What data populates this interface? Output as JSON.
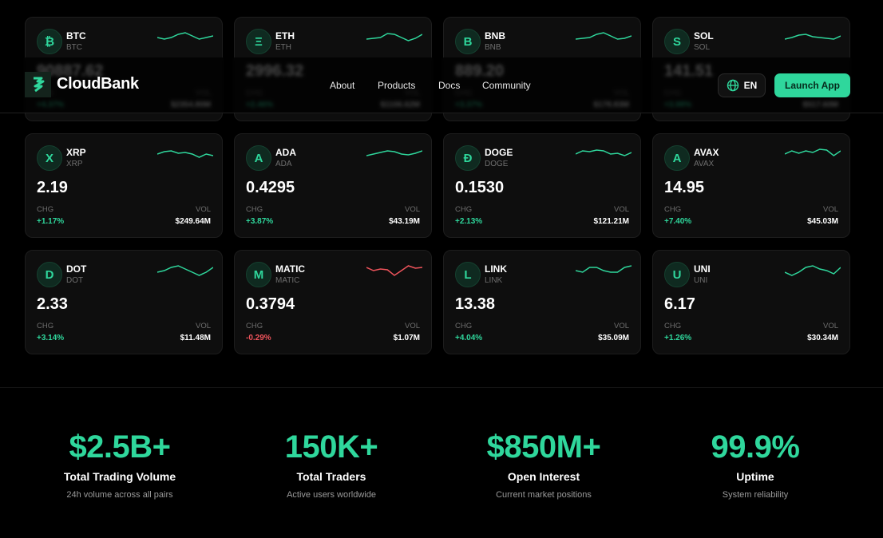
{
  "brand": {
    "name": "CloudBank",
    "accent": "#2fd79c",
    "negative": "#f0545c"
  },
  "nav": [
    "About",
    "Products",
    "Docs",
    "Community"
  ],
  "lang": {
    "label": "EN",
    "icon": "globe-icon"
  },
  "cta": "Launch App",
  "labels": {
    "chg": "CHG",
    "vol": "VOL"
  },
  "coins": [
    {
      "icon": "₿",
      "symbol": "BTC",
      "name": "BTC",
      "price": "90887.62",
      "change": "+4.37%",
      "volume": "$2354.80M",
      "trend": "up"
    },
    {
      "icon": "Ξ",
      "symbol": "ETH",
      "name": "ETH",
      "price": "2996.32",
      "change": "+2.46%",
      "volume": "$1106.62M",
      "trend": "up"
    },
    {
      "icon": "B",
      "symbol": "BNB",
      "name": "BNB",
      "price": "889.20",
      "change": "+3.37%",
      "volume": "$178.83M",
      "trend": "up"
    },
    {
      "icon": "S",
      "symbol": "SOL",
      "name": "SOL",
      "price": "141.51",
      "change": "+3.98%",
      "volume": "$517.60M",
      "trend": "up"
    },
    {
      "icon": "X",
      "symbol": "XRP",
      "name": "XRP",
      "price": "2.19",
      "change": "+1.17%",
      "volume": "$249.64M",
      "trend": "up"
    },
    {
      "icon": "A",
      "symbol": "ADA",
      "name": "ADA",
      "price": "0.4295",
      "change": "+3.87%",
      "volume": "$43.19M",
      "trend": "up"
    },
    {
      "icon": "Ð",
      "symbol": "DOGE",
      "name": "DOGE",
      "price": "0.1530",
      "change": "+2.13%",
      "volume": "$121.21M",
      "trend": "up"
    },
    {
      "icon": "A",
      "symbol": "AVAX",
      "name": "AVAX",
      "price": "14.95",
      "change": "+7.40%",
      "volume": "$45.03M",
      "trend": "up"
    },
    {
      "icon": "D",
      "symbol": "DOT",
      "name": "DOT",
      "price": "2.33",
      "change": "+3.14%",
      "volume": "$11.48M",
      "trend": "up"
    },
    {
      "icon": "M",
      "symbol": "MATIC",
      "name": "MATIC",
      "price": "0.3794",
      "change": "-0.29%",
      "volume": "$1.07M",
      "trend": "down"
    },
    {
      "icon": "L",
      "symbol": "LINK",
      "name": "LINK",
      "price": "13.38",
      "change": "+4.04%",
      "volume": "$35.09M",
      "trend": "up"
    },
    {
      "icon": "U",
      "symbol": "UNI",
      "name": "UNI",
      "price": "6.17",
      "change": "+1.26%",
      "volume": "$30.34M",
      "trend": "up"
    }
  ],
  "stats": [
    {
      "value": "$2.5B+",
      "title": "Total Trading Volume",
      "desc": "24h volume across all pairs"
    },
    {
      "value": "150K+",
      "title": "Total Traders",
      "desc": "Active users worldwide"
    },
    {
      "value": "$850M+",
      "title": "Open Interest",
      "desc": "Current market positions"
    },
    {
      "value": "99.9%",
      "title": "Uptime",
      "desc": "System reliability"
    }
  ]
}
